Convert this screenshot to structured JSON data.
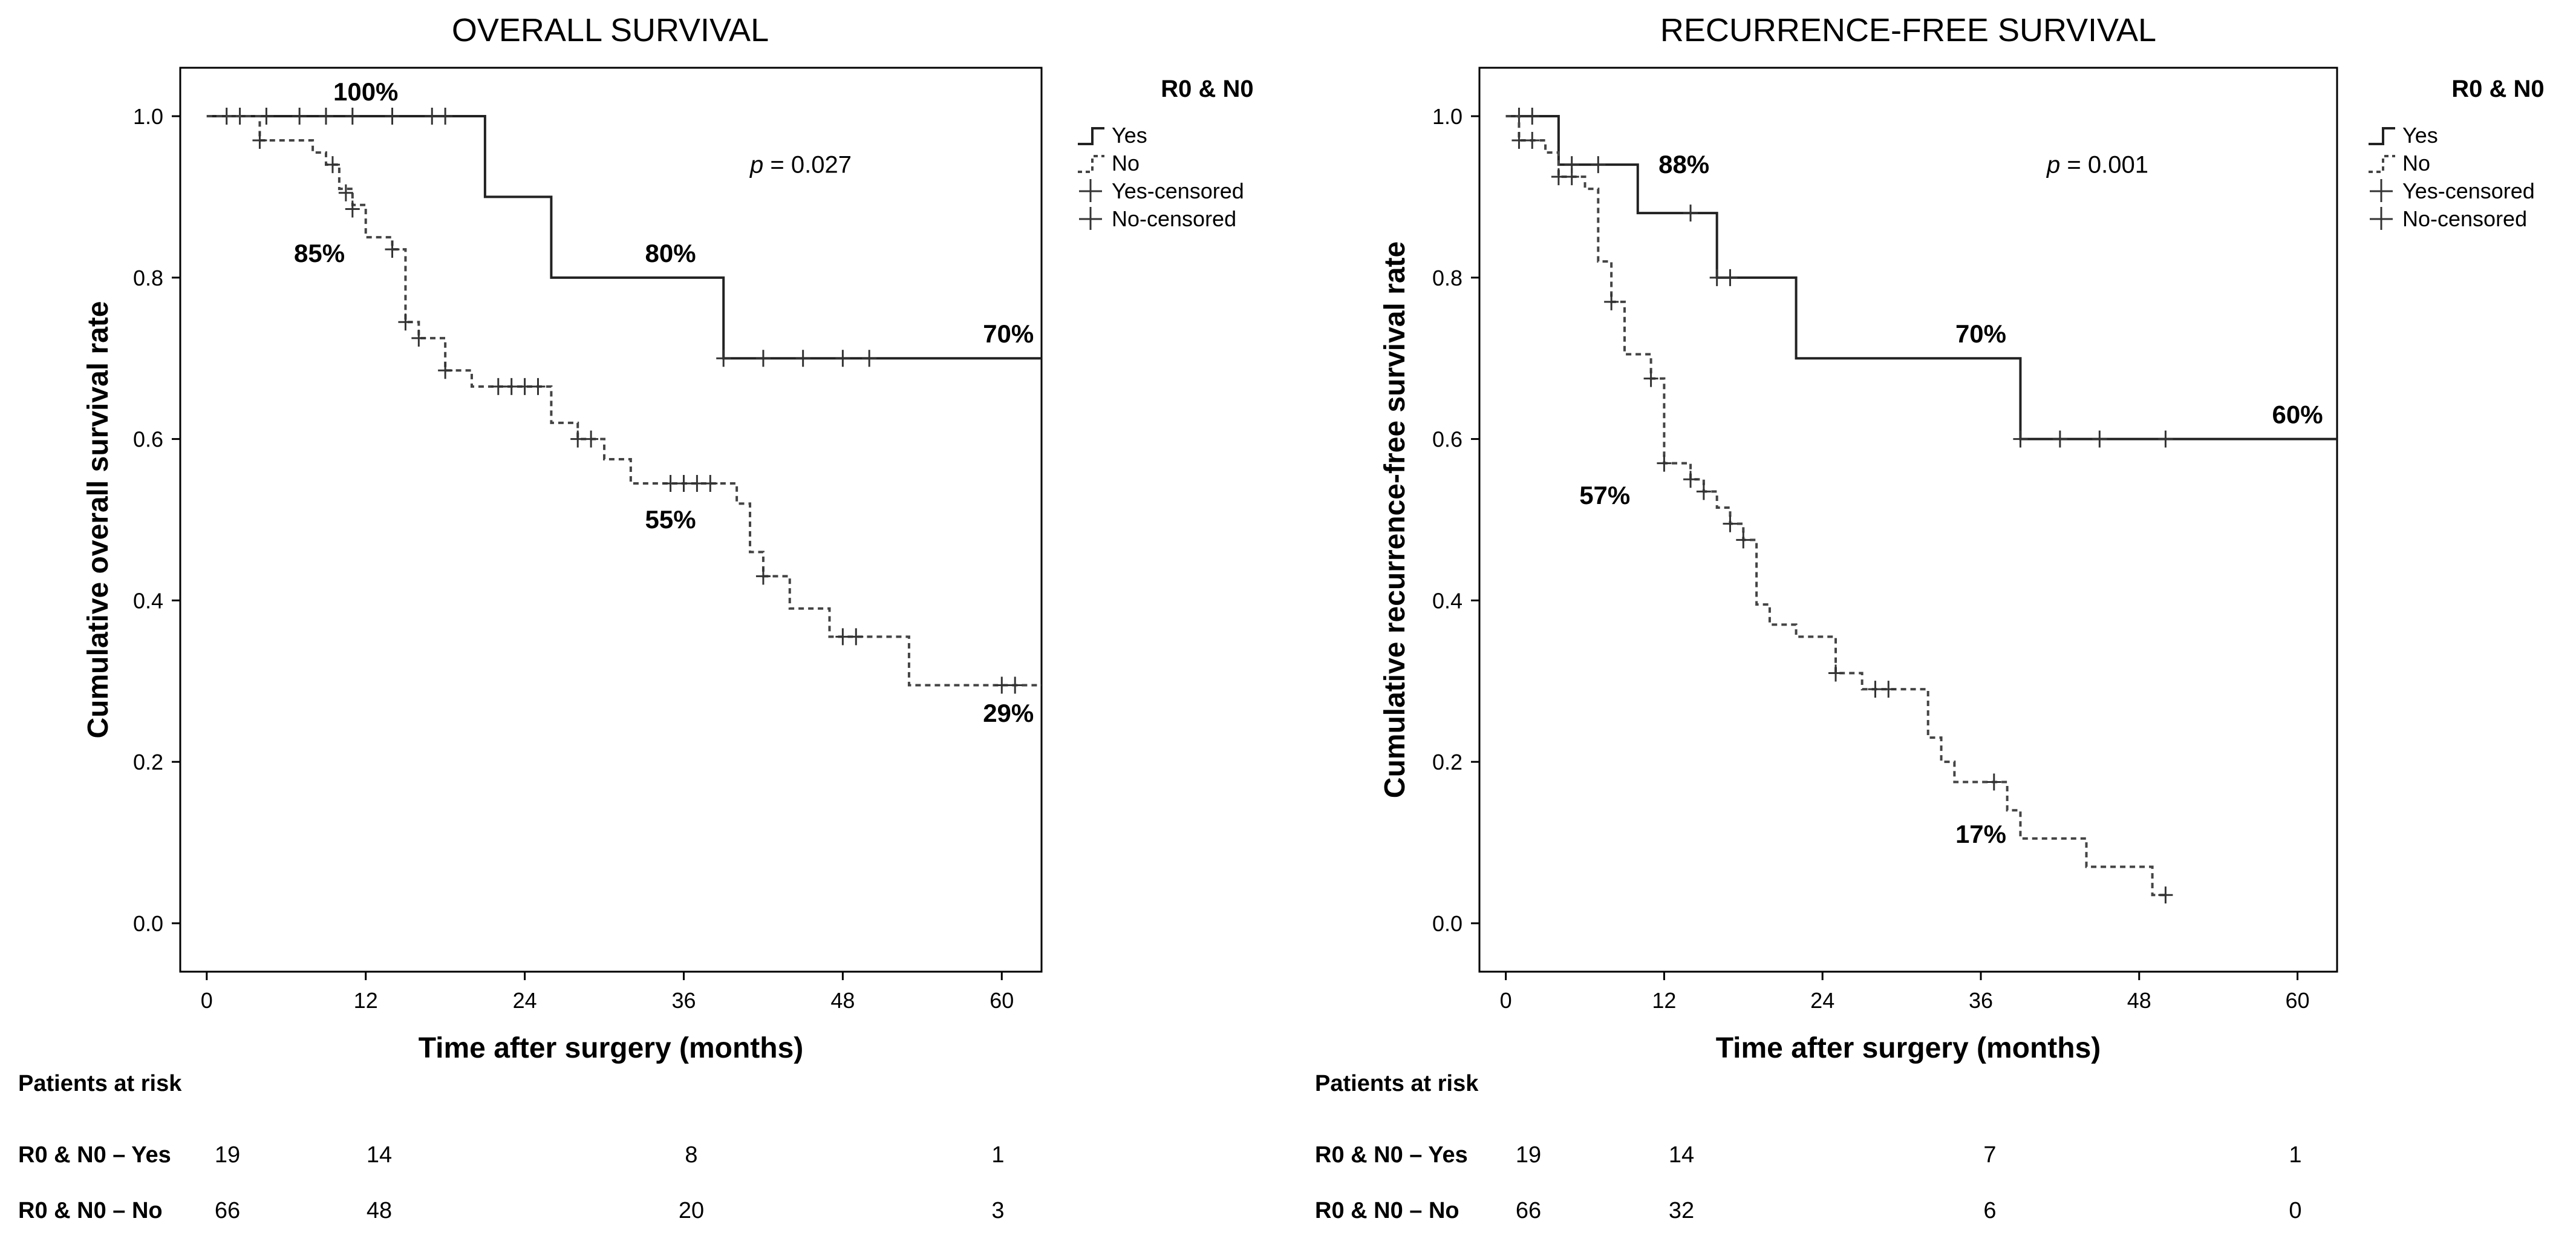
{
  "chart_data": [
    {
      "type": "line",
      "subtype": "kaplan-meier",
      "title": "OVERALL SURVIVAL",
      "xlabel": "Time after surgery (months)",
      "ylabel": "Cumulative overall survival rate",
      "xlim": [
        -2,
        63
      ],
      "ylim": [
        -0.06,
        1.06
      ],
      "xticks": [
        "0",
        "12",
        "24",
        "36",
        "48",
        "60"
      ],
      "yticks": [
        "0.0",
        "0.2",
        "0.4",
        "0.6",
        "0.8",
        "1.0"
      ],
      "legend": {
        "title": "R0 & N0",
        "position": "right-outside",
        "items": [
          "Yes",
          "No",
          "Yes-censored",
          "No-censored"
        ]
      },
      "p_value_label": "p",
      "p_value": "= 0.027",
      "series": [
        {
          "name": "Yes",
          "style": "solid",
          "steps": [
            [
              0,
              1.0
            ],
            [
              21,
              0.9
            ],
            [
              26,
              0.8
            ],
            [
              39,
              0.7
            ],
            [
              63,
              0.7
            ]
          ],
          "censored": [
            [
              1.5,
              1.0
            ],
            [
              2.5,
              1.0
            ],
            [
              4.5,
              1.0
            ],
            [
              7,
              1.0
            ],
            [
              9,
              1.0
            ],
            [
              11,
              1.0
            ],
            [
              14,
              1.0
            ],
            [
              17,
              1.0
            ],
            [
              18,
              1.0
            ],
            [
              39,
              0.7
            ],
            [
              42,
              0.7
            ],
            [
              45,
              0.7
            ],
            [
              48,
              0.7
            ],
            [
              50,
              0.7
            ]
          ]
        },
        {
          "name": "No",
          "style": "dashed",
          "steps": [
            [
              0,
              1.0
            ],
            [
              4,
              0.97
            ],
            [
              8,
              0.955
            ],
            [
              9,
              0.94
            ],
            [
              10,
              0.91
            ],
            [
              11,
              0.89
            ],
            [
              12,
              0.85
            ],
            [
              14,
              0.835
            ],
            [
              15,
              0.745
            ],
            [
              16,
              0.725
            ],
            [
              18,
              0.685
            ],
            [
              20,
              0.665
            ],
            [
              26,
              0.62
            ],
            [
              28,
              0.6
            ],
            [
              30,
              0.575
            ],
            [
              32,
              0.545
            ],
            [
              40,
              0.52
            ],
            [
              41,
              0.46
            ],
            [
              42,
              0.43
            ],
            [
              44,
              0.39
            ],
            [
              47,
              0.355
            ],
            [
              53,
              0.295
            ],
            [
              63,
              0.295
            ]
          ],
          "censored": [
            [
              4,
              0.97
            ],
            [
              9.5,
              0.94
            ],
            [
              10.5,
              0.905
            ],
            [
              11,
              0.885
            ],
            [
              14,
              0.835
            ],
            [
              15,
              0.745
            ],
            [
              16,
              0.725
            ],
            [
              18,
              0.685
            ],
            [
              22,
              0.665
            ],
            [
              23,
              0.665
            ],
            [
              24,
              0.665
            ],
            [
              25,
              0.665
            ],
            [
              28,
              0.6
            ],
            [
              29,
              0.6
            ],
            [
              35,
              0.545
            ],
            [
              36,
              0.545
            ],
            [
              37,
              0.545
            ],
            [
              38,
              0.545
            ],
            [
              42,
              0.43
            ],
            [
              48,
              0.355
            ],
            [
              49,
              0.355
            ],
            [
              60,
              0.295
            ],
            [
              61,
              0.295
            ]
          ]
        }
      ],
      "annotations": [
        {
          "text": "100%",
          "x": 12,
          "y": 1.03
        },
        {
          "text": "85%",
          "x": 8.5,
          "y": 0.83
        },
        {
          "text": "80%",
          "x": 35,
          "y": 0.83
        },
        {
          "text": "55%",
          "x": 35,
          "y": 0.5
        },
        {
          "text": "70%",
          "x": 60.5,
          "y": 0.73
        },
        {
          "text": "29%",
          "x": 60.5,
          "y": 0.26
        }
      ],
      "risk_table": {
        "header": "Patients at risk",
        "rows": [
          {
            "label": "R0 & N0 – Yes",
            "values": [
              "19",
              "14",
              "8",
              "1"
            ]
          },
          {
            "label": "R0 & N0 – No",
            "values": [
              "66",
              "48",
              "20",
              "3"
            ]
          }
        ],
        "times": [
          0,
          12,
          36,
          60
        ]
      }
    },
    {
      "type": "line",
      "subtype": "kaplan-meier",
      "title": "RECURRENCE-FREE SURVIVAL",
      "xlabel": "Time after surgery (months)",
      "ylabel": "Cumulative recurrence-free survival rate",
      "xlim": [
        -2,
        63
      ],
      "ylim": [
        -0.06,
        1.06
      ],
      "xticks": [
        "0",
        "12",
        "24",
        "36",
        "48",
        "60"
      ],
      "yticks": [
        "0.0",
        "0.2",
        "0.4",
        "0.6",
        "0.8",
        "1.0"
      ],
      "legend": {
        "title": "R0 & N0",
        "position": "right-outside",
        "items": [
          "Yes",
          "No",
          "Yes-censored",
          "No-censored"
        ]
      },
      "p_value_label": "p",
      "p_value": "= 0.001",
      "series": [
        {
          "name": "Yes",
          "style": "solid",
          "steps": [
            [
              0,
              1.0
            ],
            [
              4,
              0.94
            ],
            [
              10,
              0.88
            ],
            [
              16,
              0.8
            ],
            [
              22,
              0.7
            ],
            [
              39,
              0.6
            ],
            [
              63,
              0.6
            ]
          ],
          "censored": [
            [
              1,
              1.0
            ],
            [
              2,
              1.0
            ],
            [
              5,
              0.94
            ],
            [
              7,
              0.94
            ],
            [
              14,
              0.88
            ],
            [
              16,
              0.8
            ],
            [
              17,
              0.8
            ],
            [
              39,
              0.6
            ],
            [
              42,
              0.6
            ],
            [
              45,
              0.6
            ],
            [
              50,
              0.6
            ]
          ]
        },
        {
          "name": "No",
          "style": "dashed",
          "steps": [
            [
              0,
              1.0
            ],
            [
              1,
              0.97
            ],
            [
              3,
              0.955
            ],
            [
              4,
              0.925
            ],
            [
              6,
              0.91
            ],
            [
              7,
              0.82
            ],
            [
              8,
              0.77
            ],
            [
              9,
              0.705
            ],
            [
              11,
              0.675
            ],
            [
              12,
              0.57
            ],
            [
              14,
              0.55
            ],
            [
              15,
              0.535
            ],
            [
              16,
              0.515
            ],
            [
              17,
              0.495
            ],
            [
              18,
              0.475
            ],
            [
              19,
              0.395
            ],
            [
              20,
              0.37
            ],
            [
              22,
              0.355
            ],
            [
              25,
              0.31
            ],
            [
              27,
              0.29
            ],
            [
              32,
              0.23
            ],
            [
              33,
              0.2
            ],
            [
              34,
              0.175
            ],
            [
              38,
              0.14
            ],
            [
              39,
              0.105
            ],
            [
              44,
              0.07
            ],
            [
              49,
              0.035
            ],
            [
              50,
              0.035
            ]
          ],
          "censored": [
            [
              1,
              0.97
            ],
            [
              2,
              0.97
            ],
            [
              4,
              0.925
            ],
            [
              5,
              0.925
            ],
            [
              8,
              0.77
            ],
            [
              11,
              0.675
            ],
            [
              12,
              0.57
            ],
            [
              14,
              0.55
            ],
            [
              15,
              0.535
            ],
            [
              17,
              0.495
            ],
            [
              18,
              0.475
            ],
            [
              25,
              0.31
            ],
            [
              28,
              0.29
            ],
            [
              29,
              0.29
            ],
            [
              37,
              0.175
            ],
            [
              50,
              0.035
            ]
          ]
        }
      ],
      "annotations": [
        {
          "text": "88%",
          "x": 13.5,
          "y": 0.94
        },
        {
          "text": "57%",
          "x": 7.5,
          "y": 0.53
        },
        {
          "text": "70%",
          "x": 36,
          "y": 0.73
        },
        {
          "text": "60%",
          "x": 60,
          "y": 0.63
        },
        {
          "text": "17%",
          "x": 36,
          "y": 0.11
        }
      ],
      "risk_table": {
        "header": "Patients at risk",
        "rows": [
          {
            "label": "R0 & N0 – Yes",
            "values": [
              "19",
              "14",
              "7",
              "1"
            ]
          },
          {
            "label": "R0 & N0 – No",
            "values": [
              "66",
              "32",
              "6",
              "0"
            ]
          }
        ],
        "times": [
          0,
          12,
          36,
          60
        ]
      }
    }
  ]
}
